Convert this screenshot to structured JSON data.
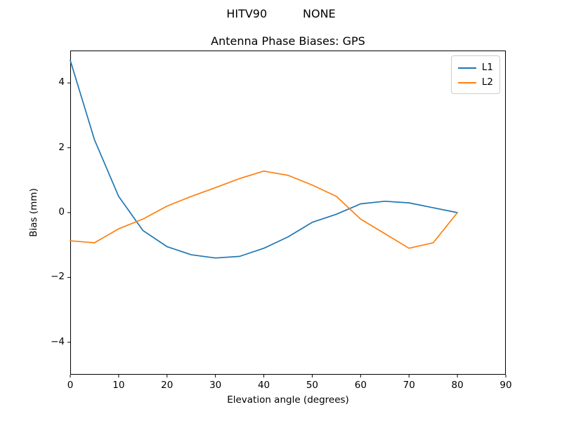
{
  "figure": {
    "suptitle": "HITV90          NONE"
  },
  "chart_data": {
    "type": "line",
    "title": "Antenna Phase Biases: GPS",
    "xlabel": "Elevation angle (degrees)",
    "ylabel": "Bias (mm)",
    "xlim": [
      0,
      90
    ],
    "ylim": [
      -5,
      5
    ],
    "x_ticks": [
      0,
      10,
      20,
      30,
      40,
      50,
      60,
      70,
      80,
      90
    ],
    "y_ticks": [
      -4,
      -2,
      0,
      2,
      4
    ],
    "grid": false,
    "legend_position": "upper right",
    "x": [
      0,
      5,
      10,
      15,
      20,
      25,
      30,
      35,
      40,
      45,
      50,
      55,
      60,
      65,
      70,
      75,
      80
    ],
    "series": [
      {
        "name": "L1",
        "color": "#1f77b4",
        "values": [
          4.7,
          2.25,
          0.5,
          -0.55,
          -1.05,
          -1.3,
          -1.4,
          -1.35,
          -1.1,
          -0.75,
          -0.3,
          -0.05,
          0.27,
          0.35,
          0.3,
          0.15,
          0.0
        ]
      },
      {
        "name": "L2",
        "color": "#ff7f0e",
        "values": [
          -0.87,
          -0.93,
          -0.5,
          -0.2,
          0.2,
          0.5,
          0.77,
          1.05,
          1.28,
          1.15,
          0.85,
          0.5,
          -0.2,
          -0.65,
          -1.1,
          -0.93,
          0.0
        ]
      }
    ]
  }
}
